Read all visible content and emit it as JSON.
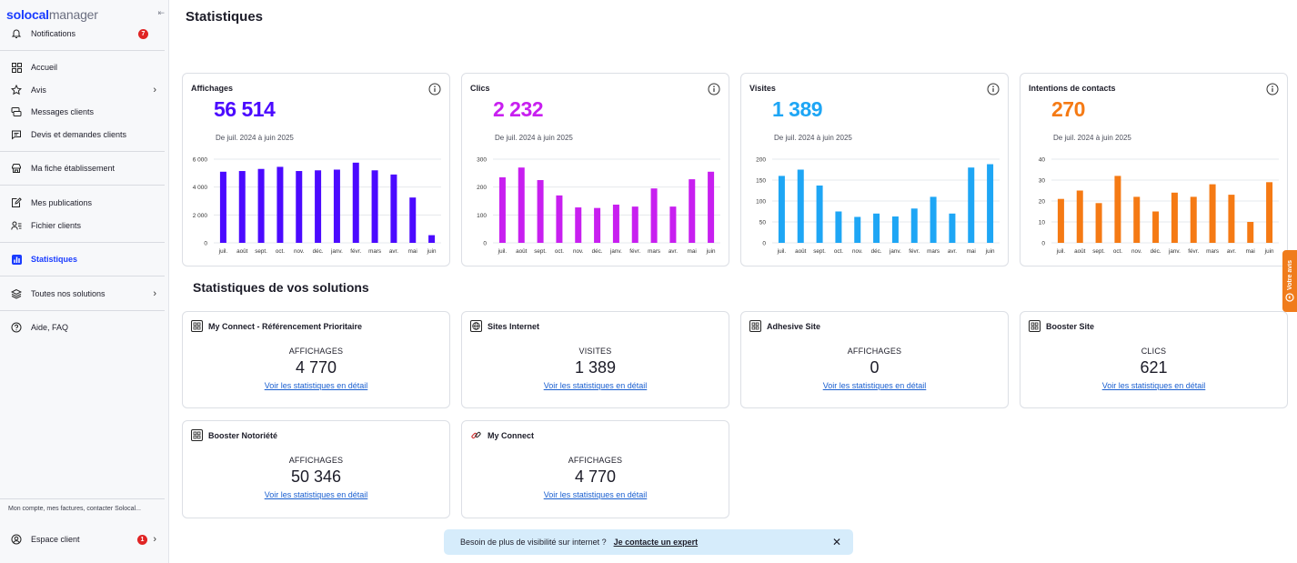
{
  "sidebar": {
    "logo_part1": "solocal",
    "logo_part2": "manager",
    "items": [
      {
        "label": "Notifications",
        "badge": "7"
      },
      {
        "label": "Accueil"
      },
      {
        "label": "Avis"
      },
      {
        "label": "Messages clients"
      },
      {
        "label": "Devis et demandes clients"
      },
      {
        "label": "Ma fiche établissement"
      },
      {
        "label": "Mes publications"
      },
      {
        "label": "Fichier clients"
      },
      {
        "label": "Statistiques"
      },
      {
        "label": "Toutes nos solutions"
      },
      {
        "label": "Aide, FAQ"
      }
    ],
    "footer_text": "Mon compte, mes factures, contacter Solocal...",
    "account": {
      "label": "Espace client",
      "badge": "1"
    }
  },
  "page": {
    "title": "Statistiques"
  },
  "kpis": [
    {
      "title": "Affichages",
      "value": "56 514",
      "period": "De juil. 2024 à juin 2025",
      "color": "#4b0aff"
    },
    {
      "title": "Clics",
      "value": "2 232",
      "period": "De juil. 2024 à juin 2025",
      "color": "#c81ff0"
    },
    {
      "title": "Visites",
      "value": "1 389",
      "period": "De juil. 2024 à juin 2025",
      "color": "#1ea6f5"
    },
    {
      "title": "Intentions de contacts",
      "value": "270",
      "period": "De juil. 2024 à juin 2025",
      "color": "#f57a14"
    }
  ],
  "chart_data": [
    {
      "type": "bar",
      "title": "Affichages",
      "color": "#4b0aff",
      "categories": [
        "juil.",
        "août",
        "sept.",
        "oct.",
        "nov.",
        "déc.",
        "janv.",
        "févr.",
        "mars",
        "avr.",
        "mai",
        "juin"
      ],
      "values": [
        5100,
        5150,
        5300,
        5450,
        5150,
        5200,
        5250,
        5750,
        5200,
        4900,
        3250,
        550
      ],
      "yticks": [
        0,
        2000,
        4000,
        6000
      ],
      "ytick_labels": [
        "0",
        "2 000",
        "4 000",
        "6 000"
      ],
      "ylim": [
        0,
        6000
      ]
    },
    {
      "type": "bar",
      "title": "Clics",
      "color": "#c81ff0",
      "categories": [
        "juil.",
        "août",
        "sept.",
        "oct.",
        "nov.",
        "déc.",
        "janv.",
        "févr.",
        "mars",
        "avr.",
        "mai",
        "juin"
      ],
      "values": [
        235,
        270,
        225,
        170,
        127,
        125,
        137,
        130,
        195,
        130,
        228,
        255
      ],
      "yticks": [
        0,
        100,
        200,
        300
      ],
      "ytick_labels": [
        "0",
        "100",
        "200",
        "300"
      ],
      "ylim": [
        0,
        300
      ]
    },
    {
      "type": "bar",
      "title": "Visites",
      "color": "#1ea6f5",
      "categories": [
        "juil.",
        "août",
        "sept.",
        "oct.",
        "nov.",
        "déc.",
        "janv.",
        "févr.",
        "mars",
        "avr.",
        "mai",
        "juin"
      ],
      "values": [
        160,
        175,
        137,
        75,
        62,
        70,
        63,
        82,
        110,
        70,
        180,
        188
      ],
      "yticks": [
        0,
        50,
        100,
        150,
        200
      ],
      "ytick_labels": [
        "0",
        "50",
        "100",
        "150",
        "200"
      ],
      "ylim": [
        0,
        200
      ]
    },
    {
      "type": "bar",
      "title": "Intentions de contacts",
      "color": "#f57a14",
      "categories": [
        "juil.",
        "août",
        "sept.",
        "oct.",
        "nov.",
        "déc.",
        "janv.",
        "févr.",
        "mars",
        "avr.",
        "mai",
        "juin"
      ],
      "values": [
        21,
        25,
        19,
        32,
        22,
        15,
        24,
        22,
        28,
        23,
        10,
        29
      ],
      "yticks": [
        0,
        10,
        20,
        30,
        40
      ],
      "ytick_labels": [
        "0",
        "10",
        "20",
        "30",
        "40"
      ],
      "ylim": [
        0,
        40
      ]
    }
  ],
  "solutions_section": {
    "title": "Statistiques de vos solutions"
  },
  "solutions": [
    {
      "name": "My Connect - Référencement Prioritaire",
      "metric": "AFFICHAGES",
      "value": "4 770",
      "link": "Voir les statistiques en détail",
      "icon": "grid-icon"
    },
    {
      "name": "Sites Internet",
      "metric": "VISITES",
      "value": "1 389",
      "link": "Voir les statistiques en détail",
      "icon": "globe-icon"
    },
    {
      "name": "Adhesive Site",
      "metric": "AFFICHAGES",
      "value": "0",
      "link": "Voir les statistiques en détail",
      "icon": "grid-icon"
    },
    {
      "name": "Booster Site",
      "metric": "CLICS",
      "value": "621",
      "link": "Voir les statistiques en détail",
      "icon": "grid-icon"
    },
    {
      "name": "Booster Notoriété",
      "metric": "AFFICHAGES",
      "value": "50 346",
      "link": "Voir les statistiques en détail",
      "icon": "grid-icon"
    },
    {
      "name": "My Connect",
      "metric": "AFFICHAGES",
      "value": "4 770",
      "link": "Voir les statistiques en détail",
      "icon": "link-icon"
    }
  ],
  "toast": {
    "text": "Besoin de plus de visibilité sur internet ?",
    "cta": "Je contacte un expert",
    "close": "✕"
  },
  "feedback": {
    "label": "Votre avis"
  }
}
